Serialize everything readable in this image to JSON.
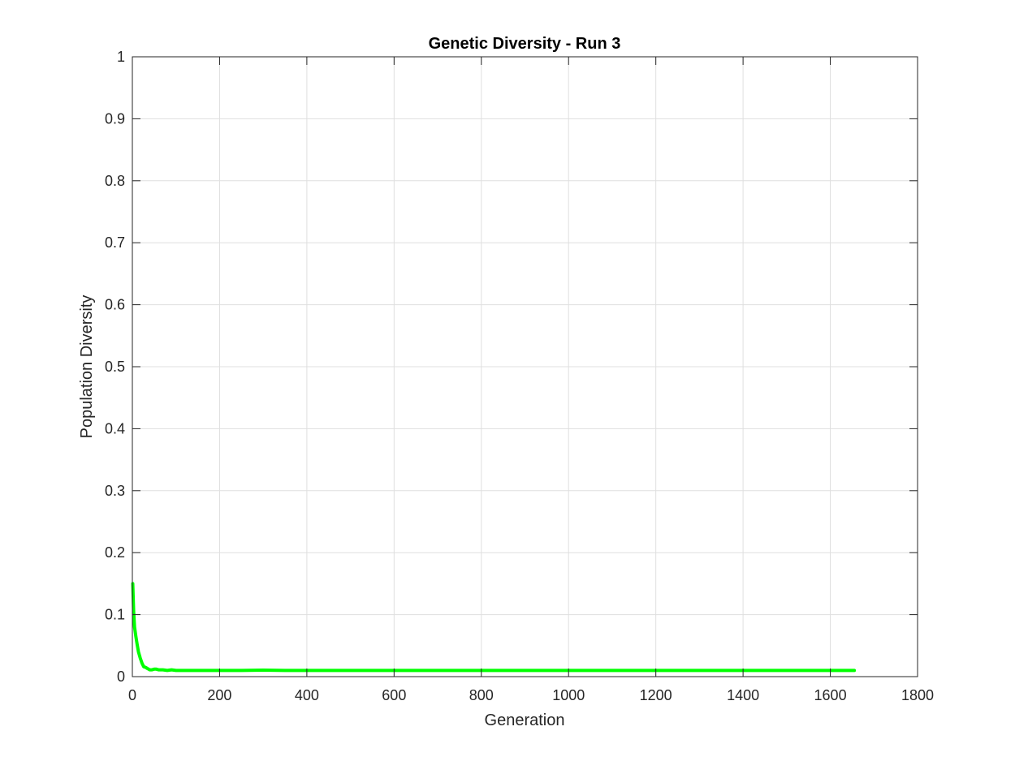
{
  "chart_data": {
    "type": "line",
    "title": "Genetic Diversity - Run 3",
    "xlabel": "Generation",
    "ylabel": "Population Diversity",
    "xlim": [
      0,
      1800
    ],
    "ylim": [
      0,
      1
    ],
    "xticks": [
      0,
      200,
      400,
      600,
      800,
      1000,
      1200,
      1400,
      1600,
      1800
    ],
    "yticks": [
      0,
      0.1,
      0.2,
      0.3,
      0.4,
      0.5,
      0.6,
      0.7,
      0.8,
      0.9,
      1
    ],
    "xtick_labels": [
      "0",
      "200",
      "400",
      "600",
      "800",
      "1000",
      "1200",
      "1400",
      "1600",
      "1800"
    ],
    "ytick_labels": [
      "0",
      "0.1",
      "0.2",
      "0.3",
      "0.4",
      "0.5",
      "0.6",
      "0.7",
      "0.8",
      "0.9",
      "1"
    ],
    "grid": true,
    "series": [
      {
        "color": "#00ff00",
        "x": [
          1,
          3,
          5,
          8,
          11,
          14,
          18,
          22,
          26,
          30,
          35,
          40,
          45,
          50,
          55,
          60,
          70,
          80,
          90,
          100,
          110,
          120,
          130,
          150,
          200,
          250,
          300,
          350,
          400,
          600,
          800,
          1000,
          1200,
          1400,
          1600,
          1655
        ],
        "y": [
          0.15,
          0.105,
          0.08,
          0.065,
          0.052,
          0.04,
          0.03,
          0.022,
          0.016,
          0.015,
          0.013,
          0.011,
          0.011,
          0.012,
          0.012,
          0.011,
          0.011,
          0.01,
          0.011,
          0.01,
          0.01,
          0.01,
          0.01,
          0.01,
          0.01,
          0.01,
          0.0105,
          0.01,
          0.01,
          0.01,
          0.01,
          0.01,
          0.01,
          0.01,
          0.01,
          0.01
        ]
      }
    ]
  }
}
